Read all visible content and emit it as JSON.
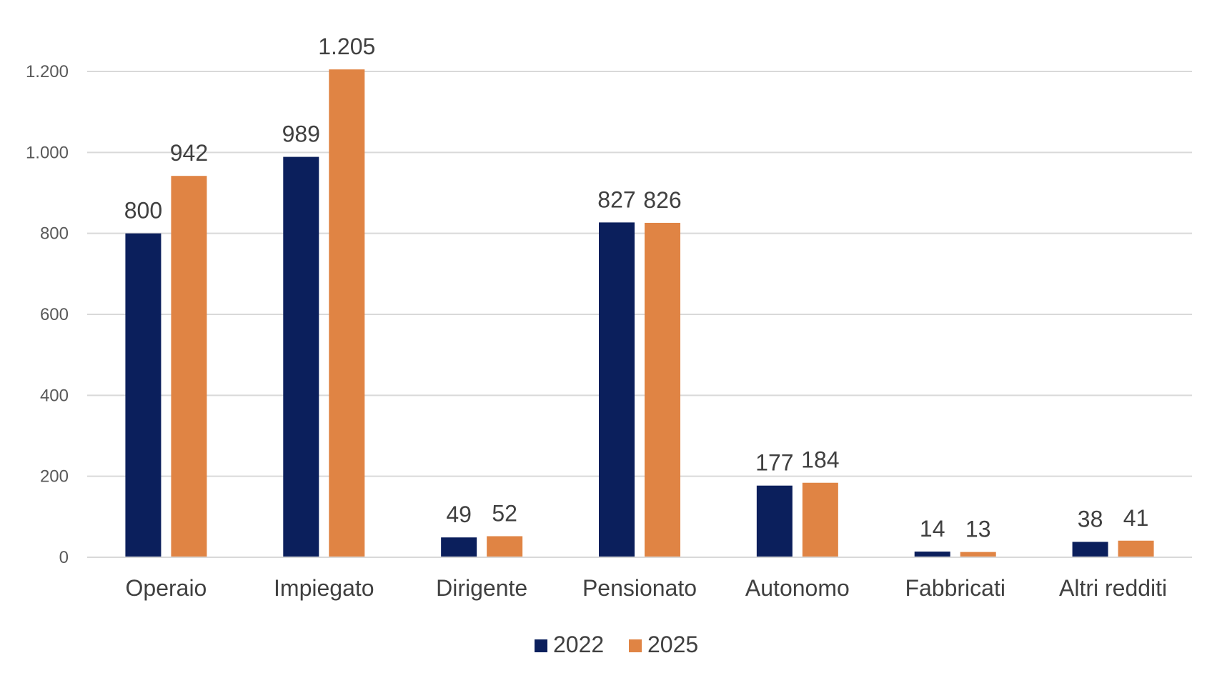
{
  "chart_data": {
    "type": "bar",
    "categories": [
      "Operaio",
      "Impiegato",
      "Dirigente",
      "Pensionato",
      "Autonomo",
      "Fabbricati",
      "Altri redditi"
    ],
    "series": [
      {
        "name": "2022",
        "color": "#0b1f5c",
        "values": [
          800,
          989,
          49,
          827,
          177,
          14,
          38
        ],
        "labels": [
          "800",
          "989",
          "49",
          "827",
          "177",
          "14",
          "38"
        ]
      },
      {
        "name": "2025",
        "color": "#e08444",
        "values": [
          942,
          1205,
          52,
          826,
          184,
          13,
          41
        ],
        "labels": [
          "942",
          "1.205",
          "52",
          "826",
          "184",
          "13",
          "41"
        ]
      }
    ],
    "y_ticks": [
      {
        "value": 0,
        "label": "0"
      },
      {
        "value": 200,
        "label": "200"
      },
      {
        "value": 400,
        "label": "400"
      },
      {
        "value": 600,
        "label": "600"
      },
      {
        "value": 800,
        "label": "800"
      },
      {
        "value": 1000,
        "label": "1.000"
      },
      {
        "value": 1200,
        "label": "1.200"
      }
    ],
    "ylim": [
      0,
      1200
    ],
    "grid": true,
    "legend_position": "bottom-center",
    "title": "",
    "xlabel": "",
    "ylabel": ""
  }
}
